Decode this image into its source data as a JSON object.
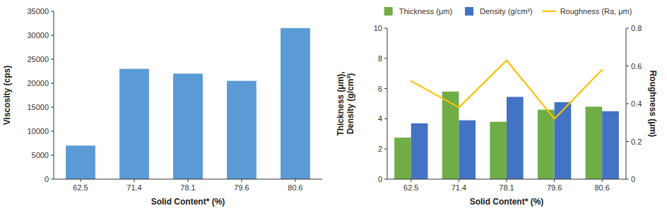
{
  "chart_data": [
    {
      "type": "bar",
      "categories": [
        "62.5",
        "71.4",
        "78.1",
        "79.6",
        "80.6"
      ],
      "values": [
        7000,
        23000,
        22000,
        20500,
        31500
      ],
      "color": "#5B9BD5",
      "xlabel": "Solid Content* (%)",
      "ylabel": "Viscosity (cps)",
      "ylim": [
        0,
        35000
      ],
      "yticks": [
        0,
        5000,
        10000,
        15000,
        20000,
        25000,
        30000,
        35000
      ],
      "grid": false
    },
    {
      "type": "bar",
      "categories": [
        "62.5",
        "71.4",
        "78.1",
        "79.6",
        "80.6"
      ],
      "series": [
        {
          "name": "Thickness (μm)",
          "color": "#70AD47",
          "values": [
            2.75,
            5.8,
            3.8,
            4.6,
            4.8
          ]
        },
        {
          "name": "Density (g/cm³)",
          "color": "#4472C4",
          "values": [
            3.7,
            3.9,
            5.45,
            5.1,
            4.5
          ]
        },
        {
          "name": "Roughness (Ra, μm)",
          "type": "line",
          "axis": "y2",
          "color": "#FFC000",
          "values": [
            0.52,
            0.38,
            0.63,
            0.32,
            0.58
          ]
        }
      ],
      "xlabel": "Solid Content* (%)",
      "ylabel": "Thickness (μm),\nDensity (g/cm³)",
      "y2label": "Roughness (μm)",
      "ylim": [
        0,
        10
      ],
      "yticks": [
        0,
        2,
        4,
        6,
        8,
        10
      ],
      "y2lim": [
        0,
        0.8
      ],
      "y2ticks": [
        0,
        0.2,
        0.4,
        0.6,
        0.8
      ],
      "legend": "top",
      "grid": false
    }
  ]
}
